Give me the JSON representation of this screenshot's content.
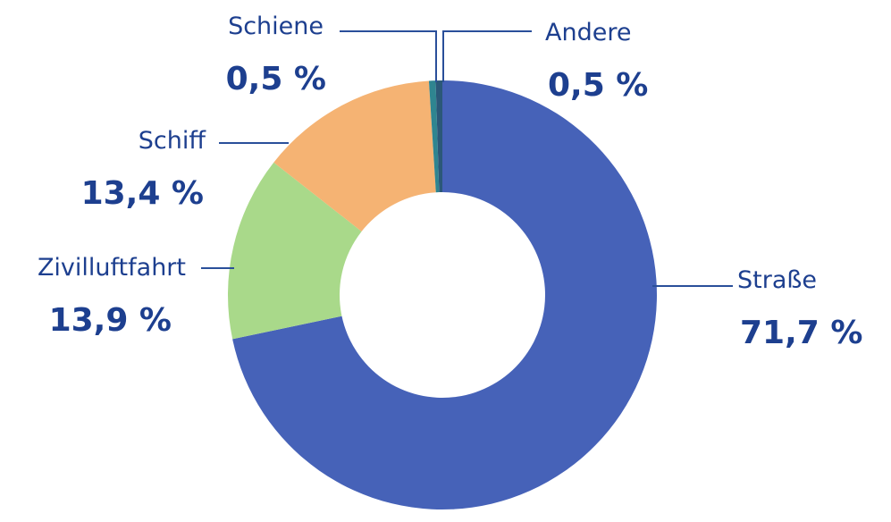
{
  "chart_data": {
    "type": "donut",
    "categories": [
      "Straße",
      "Zivilluftfahrt",
      "Schiff",
      "Schiene",
      "Andere"
    ],
    "values": [
      71.7,
      13.9,
      13.4,
      0.5,
      0.5
    ],
    "value_labels": [
      "71,7 %",
      "13,9 %",
      "13,4 %",
      "0,5 %",
      "0,5 %"
    ],
    "colors": [
      "#4662b8",
      "#a9d98a",
      "#f5b373",
      "#2f8590",
      "#2b5878"
    ]
  }
}
